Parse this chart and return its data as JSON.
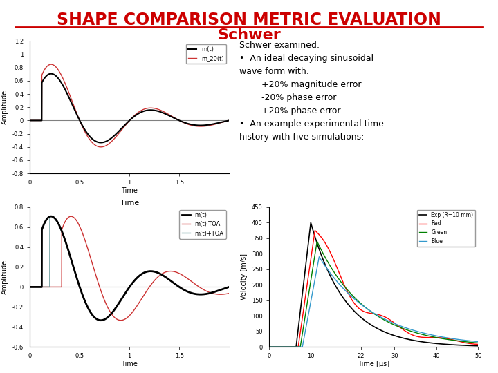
{
  "title_line1": "SHAPE COMPARISON METRIC EVALUATION",
  "title_line2": "Schwer",
  "title_color": "#cc0000",
  "bg_color": "#ffffff",
  "text_block": "Schwer examined:\n•  An ideal decaying sinusoidal\nwave form with:\n        +20% magnitude error\n        -20% phase error\n        +20% phase error\n•  An example experimental time\nhistory with five simulations:",
  "plot1": {
    "ylabel": "Amplitude",
    "xlabel": "Time",
    "xlim": [
      0,
      2
    ],
    "ylim": [
      -0.8,
      1.2
    ],
    "yticks": [
      -0.8,
      -0.6,
      -0.4,
      -0.2,
      0,
      0.2,
      0.4,
      0.6,
      0.8,
      1.0,
      1.2
    ],
    "xticks": [
      0,
      0.5,
      1.0,
      1.5
    ],
    "legend": [
      "m(t)",
      "m_20(t)"
    ]
  },
  "plot2": {
    "ylabel": "Amplitude",
    "xlabel": "Time",
    "xlim": [
      0,
      2
    ],
    "ylim": [
      -0.6,
      0.8
    ],
    "yticks": [
      -0.6,
      -0.4,
      -0.2,
      0,
      0.2,
      0.4,
      0.6,
      0.8
    ],
    "xticks": [
      0,
      0.5,
      1.0,
      1.5
    ],
    "legend": [
      "m(t)",
      "m(t)-TOA",
      "m(t)+TOA"
    ]
  },
  "plot3": {
    "ylabel": "Velocity [m/s]",
    "xlabel": "Time [μs]",
    "xlim": [
      0,
      50
    ],
    "ylim": [
      0,
      450
    ],
    "yticks": [
      0,
      50,
      100,
      150,
      200,
      250,
      300,
      350,
      400,
      450
    ],
    "xticks": [
      0,
      10,
      22,
      30,
      40,
      50
    ],
    "legend": [
      "Exp (R=10 mm)",
      "Red",
      "Green",
      "Blue"
    ]
  }
}
